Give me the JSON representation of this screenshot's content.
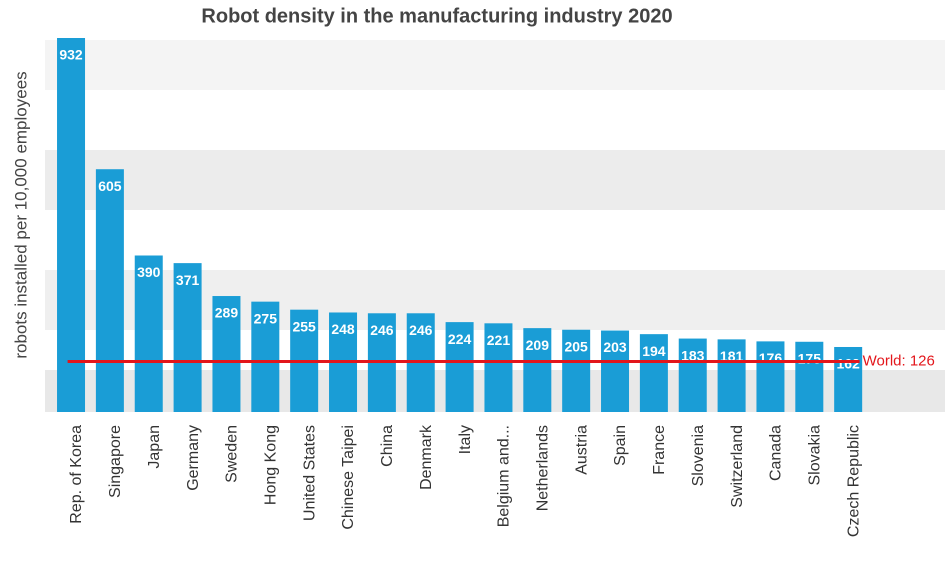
{
  "chart_data": {
    "type": "bar",
    "title": "Robot density in the manufacturing industry 2020",
    "y_label": "robots installed per 10,000 employees",
    "categories": [
      "Rep. of Korea",
      "Singapore",
      "Japan",
      "Germany",
      "Sweden",
      "Hong Kong",
      "United States",
      "Chinese Taipei",
      "China",
      "Denmark",
      "Italy",
      "Belgium and...",
      "Netherlands",
      "Austria",
      "Spain",
      "France",
      "Slovenia",
      "Switzerland",
      "Canada",
      "Slovakia",
      "Czech Republic"
    ],
    "values": [
      932,
      605,
      390,
      371,
      289,
      275,
      255,
      248,
      246,
      246,
      224,
      221,
      209,
      205,
      203,
      194,
      183,
      181,
      176,
      175,
      162
    ],
    "color": "#1a9dd6",
    "ylim": [
      0,
      932
    ],
    "reference_line": {
      "value": 126,
      "label": "World: 126",
      "color": "#e3161b"
    }
  }
}
